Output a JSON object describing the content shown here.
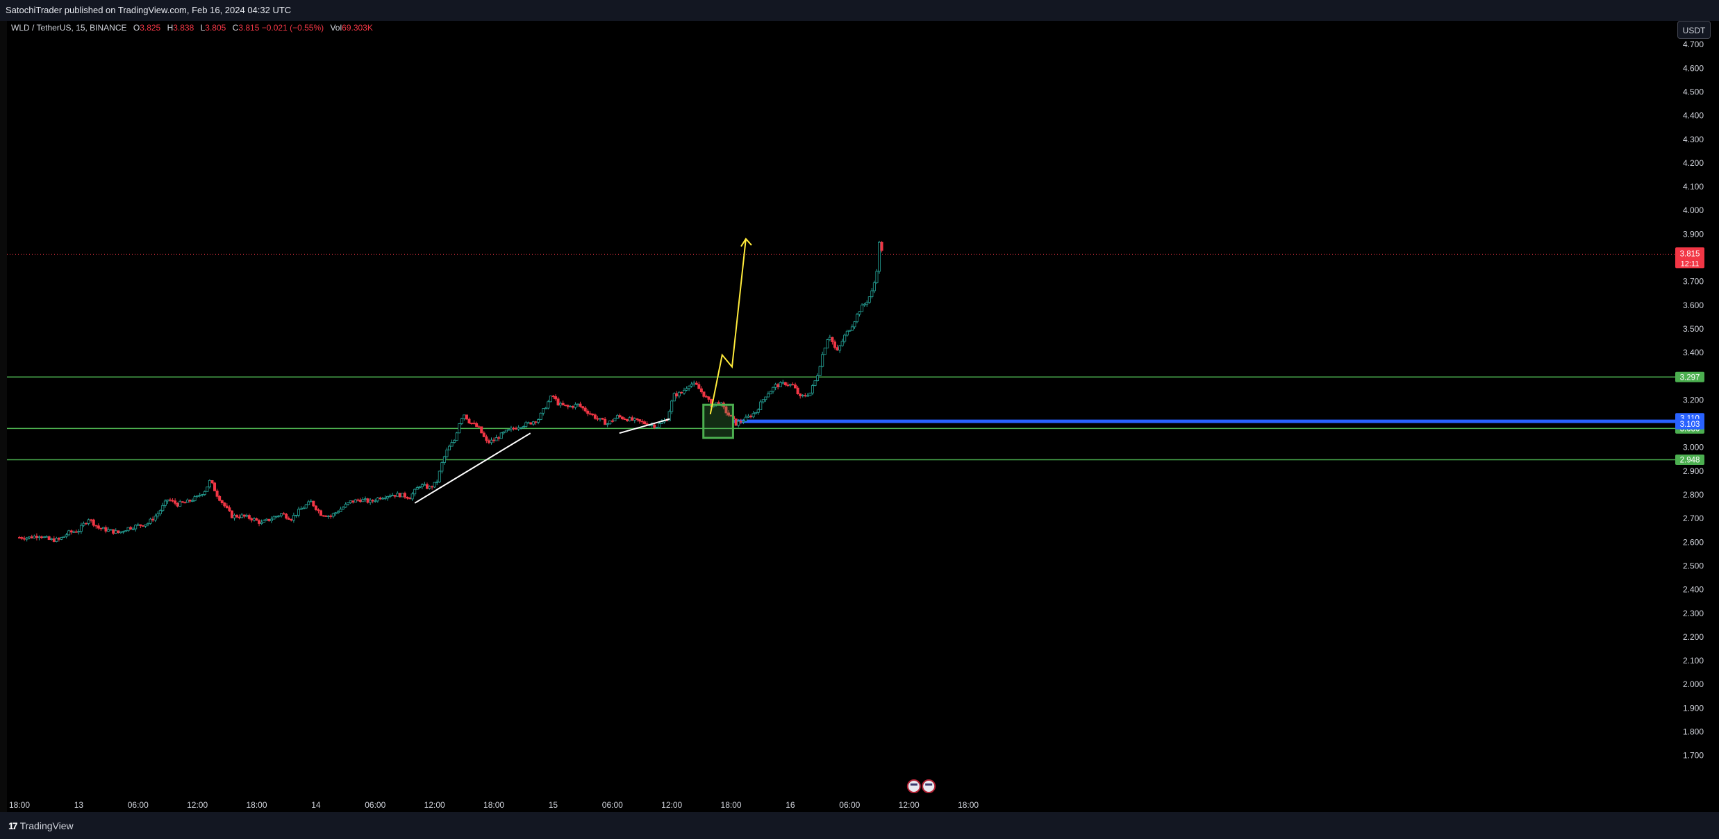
{
  "header": {
    "publisher_text": "SatochiTrader published on TradingView.com, Feb 16, 2024 04:32 UTC"
  },
  "legend": {
    "symbol": "WLD / TetherUS, 15, BINANCE",
    "open_label": "O",
    "open": "3.825",
    "high_label": "H",
    "high": "3.838",
    "low_label": "L",
    "low": "3.805",
    "close_label": "C",
    "close": "3.815",
    "change": "−0.021 (−0.55%)",
    "vol_label": "Vol",
    "vol": "69.303K"
  },
  "currency_button": "USDT",
  "footer": {
    "brand": "TradingView",
    "logo": "17"
  },
  "colors": {
    "up": "#26a69a",
    "down": "#f23645",
    "level": "#4caf50",
    "blue_level": "#2962ff",
    "arrow": "#ffeb3b",
    "trendline": "#ffffff"
  },
  "icons": [
    "us-flag-event-icon",
    "us-flag-event-icon"
  ],
  "chart_data": {
    "type": "candlestick",
    "symbol": "WLD / TetherUS",
    "interval": "15",
    "exchange": "BINANCE",
    "ylim": [
      1.6,
      4.8
    ],
    "y_ticks": [
      "4.700",
      "4.600",
      "4.500",
      "4.400",
      "4.300",
      "4.200",
      "4.100",
      "4.000",
      "3.900",
      "3.800",
      "3.700",
      "3.600",
      "3.500",
      "3.400",
      "3.300",
      "3.200",
      "3.100",
      "3.000",
      "2.900",
      "2.800",
      "2.700",
      "2.600",
      "2.500",
      "2.400",
      "2.300",
      "2.200",
      "2.100",
      "2.000",
      "1.900",
      "1.800",
      "1.700"
    ],
    "x_range_hours": [
      -1,
      49.5
    ],
    "x_ticks": [
      {
        "label": "18:00",
        "h": -1
      },
      {
        "label": "13",
        "h": 5
      },
      {
        "label": "06:00",
        "h": 11
      },
      {
        "label": "12:00",
        "h": 17
      },
      {
        "label": "18:00",
        "h": 23
      },
      {
        "label": "14",
        "h": 29
      },
      {
        "label": "06:00",
        "h": 35
      },
      {
        "label": "12:00",
        "h": 41
      },
      {
        "label": "18:00",
        "h": 47
      },
      {
        "label": "15",
        "h": 53
      },
      {
        "label": "06:00",
        "h": 59
      },
      {
        "label": "12:00",
        "h": 65
      },
      {
        "label": "18:00",
        "h": 71
      },
      {
        "label": "16",
        "h": 77
      },
      {
        "label": "06:00",
        "h": 83
      },
      {
        "label": "12:00",
        "h": 89
      },
      {
        "label": "18:00",
        "h": 95
      }
    ],
    "price_path": [
      [
        -1,
        2.62
      ],
      [
        0,
        2.62
      ],
      [
        1,
        2.63
      ],
      [
        2,
        2.61
      ],
      [
        3,
        2.61
      ],
      [
        4,
        2.64
      ],
      [
        5,
        2.65
      ],
      [
        6,
        2.7
      ],
      [
        7,
        2.66
      ],
      [
        8,
        2.65
      ],
      [
        9,
        2.64
      ],
      [
        10,
        2.66
      ],
      [
        11,
        2.67
      ],
      [
        12,
        2.68
      ],
      [
        13,
        2.72
      ],
      [
        14,
        2.78
      ],
      [
        15,
        2.76
      ],
      [
        16,
        2.77
      ],
      [
        17,
        2.79
      ],
      [
        17.8,
        2.82
      ],
      [
        18.3,
        2.86
      ],
      [
        19,
        2.8
      ],
      [
        19.8,
        2.75
      ],
      [
        20.5,
        2.71
      ],
      [
        21.5,
        2.71
      ],
      [
        22.5,
        2.7
      ],
      [
        23.5,
        2.68
      ],
      [
        24.5,
        2.7
      ],
      [
        25.5,
        2.72
      ],
      [
        26.5,
        2.7
      ],
      [
        27.5,
        2.74
      ],
      [
        28.5,
        2.77
      ],
      [
        29.5,
        2.72
      ],
      [
        30.5,
        2.71
      ],
      [
        31.5,
        2.74
      ],
      [
        32.5,
        2.77
      ],
      [
        33.5,
        2.78
      ],
      [
        34.5,
        2.77
      ],
      [
        35.5,
        2.79
      ],
      [
        36.5,
        2.8
      ],
      [
        37.5,
        2.8
      ],
      [
        38.5,
        2.79
      ],
      [
        39.5,
        2.84
      ],
      [
        40.5,
        2.83
      ],
      [
        41.2,
        2.85
      ],
      [
        41.8,
        2.94
      ],
      [
        42.3,
        2.99
      ],
      [
        43,
        3.03
      ],
      [
        43.6,
        3.12
      ],
      [
        44,
        3.14
      ],
      [
        44.5,
        3.11
      ],
      [
        45.5,
        3.08
      ],
      [
        46.3,
        3.02
      ],
      [
        47,
        3.03
      ],
      [
        48,
        3.06
      ],
      [
        49,
        3.08
      ],
      [
        49.5,
        3.09
      ]
    ],
    "candles_series": "15-minute OHLC candles (green up / red down)",
    "levels": [
      {
        "price": 3.297,
        "label": "3.297",
        "color": "#4caf50"
      },
      {
        "price": 3.08,
        "label": "3.080",
        "color": "#4caf50"
      },
      {
        "price": 2.948,
        "label": "2.948",
        "color": "#4caf50"
      }
    ],
    "blue_level": {
      "price": 3.11,
      "label": "3.110"
    },
    "price_badges": [
      {
        "label": "3.103",
        "price": 3.103,
        "color": "#2962ff"
      },
      {
        "last_price": "3.815",
        "countdown": "12:11",
        "price": 3.815,
        "color": "#f23645"
      }
    ],
    "trendlines": [
      {
        "from": [
          39,
          2.765
        ],
        "to": [
          50.7,
          3.06
        ]
      },
      {
        "from": [
          59.7,
          3.06
        ],
        "to": [
          64.8,
          3.12
        ]
      }
    ],
    "demand_zone": {
      "h0": 68.2,
      "h1": 71.2,
      "y0": 3.04,
      "y1": 3.18
    },
    "projection_arrow": [
      [
        68.9,
        3.14
      ],
      [
        70.1,
        3.39
      ],
      [
        71.1,
        3.34
      ],
      [
        72.5,
        3.88
      ]
    ],
    "event_markers_h": [
      89.5,
      91.0
    ]
  }
}
